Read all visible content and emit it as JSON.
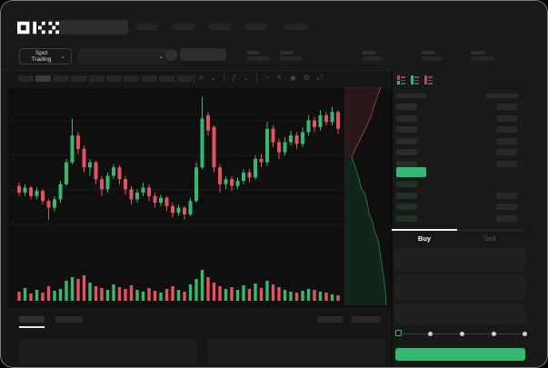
{
  "app": {
    "brand": "OKX"
  },
  "header": {
    "market_selector_label": "Spot Trading",
    "market_selector_chevron": "⌄",
    "pair_selector_chevron": "⌄"
  },
  "toolbar": {
    "icons": [
      {
        "name": "candle-style-icon",
        "glyph": "⌗"
      },
      {
        "name": "chevron-down-icon",
        "glyph": "⌄"
      },
      {
        "name": "divider",
        "glyph": ""
      },
      {
        "name": "indicator-icon",
        "glyph": "ƒ"
      },
      {
        "name": "chevron-down-icon",
        "glyph": "⌄"
      },
      {
        "name": "divider",
        "glyph": ""
      },
      {
        "name": "line-tool-icon",
        "glyph": "~"
      },
      {
        "name": "draw-tool-icon",
        "glyph": "✎"
      },
      {
        "name": "snapshot-icon",
        "glyph": "◉"
      },
      {
        "name": "chart-settings-icon",
        "glyph": "⚙"
      },
      {
        "name": "fullscreen-icon",
        "glyph": "⤢"
      }
    ]
  },
  "orderbook": {
    "view_toggle_icons": [
      "combined-book-icon",
      "bids-only-icon",
      "asks-only-icon"
    ],
    "ask_row_count": 6,
    "bid_row_count": 4,
    "price_highlight_color": "#2ebd70"
  },
  "trade_panel": {
    "buy_tab_label": "Buy",
    "sell_tab_label": "Sell",
    "form_field_count": 3,
    "slider_stop_count": 5
  },
  "colors": {
    "up_green": "#2ebd70",
    "down_red": "#e8525f",
    "buy_button_green": "#2ebd70",
    "bid_row_tint": "#1d3326",
    "grid_line": "rgba(255,255,255,0.05)"
  },
  "chart_data": {
    "type": "candlestick",
    "title": "",
    "note": "no axis tick labels visible; values normalized 0-100 estimated from pixel positions",
    "ylim": [
      0,
      100
    ],
    "grid": true,
    "candles_ohlc_as_o_c_h_l": [
      [
        44,
        40,
        46,
        38
      ],
      [
        40,
        43,
        45,
        38
      ],
      [
        43,
        38,
        44,
        36
      ],
      [
        38,
        41,
        43,
        36
      ],
      [
        41,
        35,
        42,
        33
      ],
      [
        35,
        31,
        36,
        24
      ],
      [
        31,
        36,
        38,
        29
      ],
      [
        36,
        45,
        47,
        34
      ],
      [
        45,
        58,
        60,
        44
      ],
      [
        58,
        74,
        84,
        57
      ],
      [
        74,
        66,
        76,
        63
      ],
      [
        66,
        55,
        68,
        52
      ],
      [
        55,
        58,
        60,
        50
      ],
      [
        58,
        48,
        59,
        45
      ],
      [
        48,
        42,
        50,
        38
      ],
      [
        42,
        50,
        52,
        40
      ],
      [
        50,
        55,
        57,
        48
      ],
      [
        55,
        48,
        56,
        45
      ],
      [
        48,
        42,
        50,
        39
      ],
      [
        42,
        36,
        44,
        33
      ],
      [
        36,
        40,
        42,
        34
      ],
      [
        40,
        43,
        46,
        38
      ],
      [
        43,
        38,
        45,
        35
      ],
      [
        38,
        34,
        40,
        31
      ],
      [
        34,
        37,
        39,
        32
      ],
      [
        37,
        32,
        38,
        29
      ],
      [
        32,
        28,
        34,
        25
      ],
      [
        28,
        31,
        33,
        26
      ],
      [
        31,
        27,
        32,
        24
      ],
      [
        27,
        35,
        37,
        26
      ],
      [
        35,
        55,
        58,
        34
      ],
      [
        55,
        84,
        97,
        54
      ],
      [
        86,
        77,
        88,
        74
      ],
      [
        79,
        55,
        80,
        52
      ],
      [
        55,
        45,
        57,
        40
      ],
      [
        45,
        48,
        50,
        42
      ],
      [
        48,
        44,
        50,
        41
      ],
      [
        44,
        47,
        49,
        42
      ],
      [
        47,
        52,
        54,
        45
      ],
      [
        52,
        49,
        54,
        46
      ],
      [
        49,
        60,
        62,
        48
      ],
      [
        60,
        58,
        63,
        55
      ],
      [
        58,
        78,
        82,
        56
      ],
      [
        78,
        70,
        80,
        67
      ],
      [
        70,
        64,
        72,
        60
      ],
      [
        64,
        70,
        73,
        62
      ],
      [
        70,
        74,
        77,
        68
      ],
      [
        74,
        69,
        76,
        66
      ],
      [
        69,
        76,
        79,
        67
      ],
      [
        76,
        83,
        86,
        74
      ],
      [
        83,
        79,
        85,
        76
      ],
      [
        79,
        86,
        89,
        77
      ],
      [
        86,
        82,
        88,
        80
      ],
      [
        82,
        88,
        91,
        80
      ],
      [
        88,
        78,
        89,
        75
      ]
    ],
    "volumes": [
      10,
      14,
      8,
      12,
      9,
      16,
      11,
      13,
      22,
      26,
      24,
      28,
      20,
      16,
      14,
      12,
      18,
      15,
      13,
      17,
      12,
      10,
      14,
      11,
      9,
      13,
      16,
      12,
      10,
      18,
      24,
      34,
      26,
      20,
      16,
      13,
      15,
      12,
      17,
      13,
      19,
      14,
      22,
      18,
      15,
      12,
      10,
      9,
      11,
      13,
      12,
      10,
      9,
      7,
      6
    ],
    "depth": {
      "orientation": "vertical",
      "asks_curve": [
        [
          40,
          0
        ],
        [
          37,
          8
        ],
        [
          35,
          15
        ],
        [
          32,
          22
        ],
        [
          30,
          30
        ],
        [
          27,
          37
        ],
        [
          24,
          44
        ],
        [
          20,
          52
        ],
        [
          17,
          58
        ],
        [
          14,
          64
        ],
        [
          11,
          70
        ],
        [
          8,
          78
        ]
      ],
      "bids_curve": [
        [
          8,
          78
        ],
        [
          11,
          85
        ],
        [
          13,
          92
        ],
        [
          16,
          100
        ],
        [
          18,
          110
        ],
        [
          23,
          118
        ],
        [
          25,
          128
        ],
        [
          27,
          138
        ],
        [
          31,
          148
        ],
        [
          33,
          158
        ],
        [
          37,
          168
        ],
        [
          39,
          180
        ],
        [
          41,
          194
        ],
        [
          43,
          208
        ],
        [
          45,
          222
        ],
        [
          46,
          240
        ]
      ]
    }
  }
}
